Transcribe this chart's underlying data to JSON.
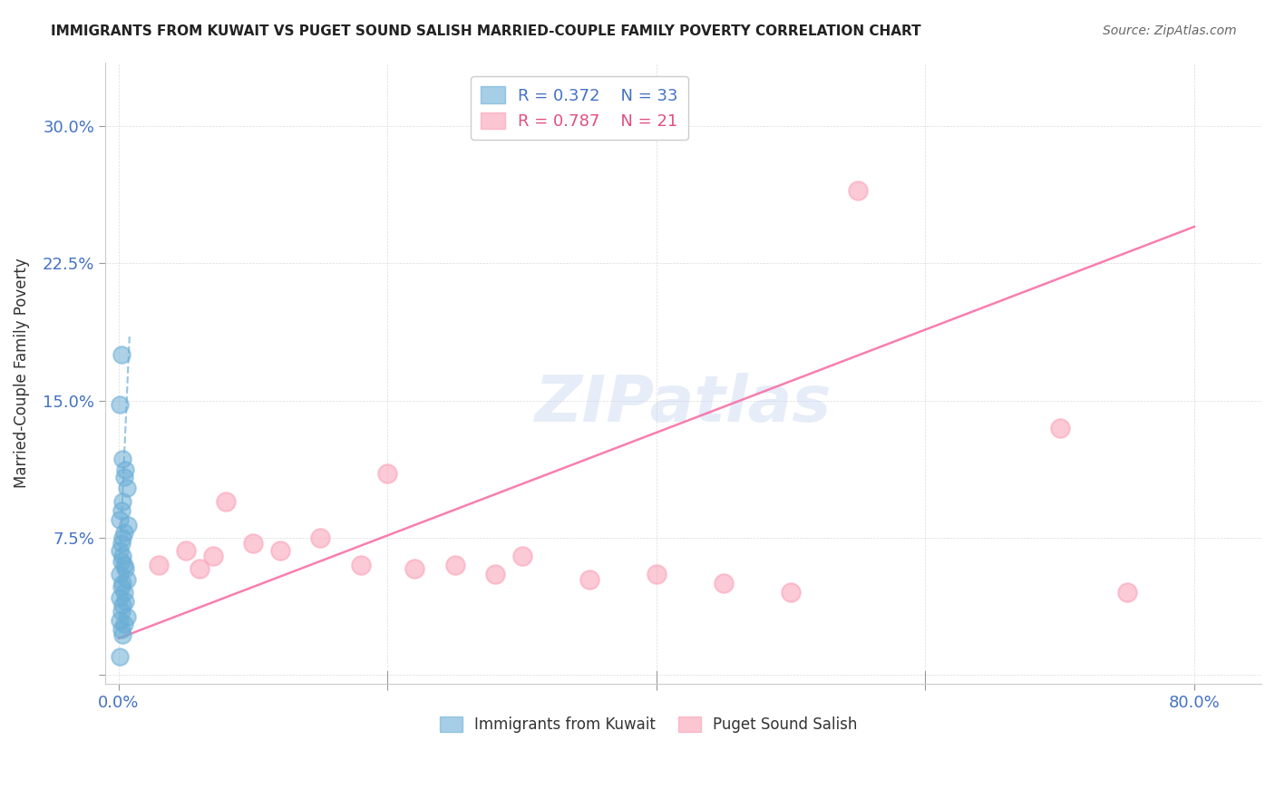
{
  "title": "IMMIGRANTS FROM KUWAIT VS PUGET SOUND SALISH MARRIED-COUPLE FAMILY POVERTY CORRELATION CHART",
  "source": "Source: ZipAtlas.com",
  "xlabel_blue": "Immigrants from Kuwait",
  "xlabel_pink": "Puget Sound Salish",
  "ylabel": "Married-Couple Family Poverty",
  "x_ticks": [
    0.0,
    0.2,
    0.4,
    0.6,
    0.8
  ],
  "x_tick_labels": [
    "0.0%",
    "",
    "",
    "",
    "80.0%"
  ],
  "y_ticks": [
    0.0,
    0.075,
    0.15,
    0.225,
    0.3
  ],
  "y_tick_labels": [
    "",
    "7.5%",
    "15.0%",
    "22.5%",
    "30.0%"
  ],
  "xlim": [
    -0.01,
    0.85
  ],
  "ylim": [
    -0.005,
    0.335
  ],
  "blue_R": "0.372",
  "blue_N": "33",
  "pink_R": "0.787",
  "pink_N": "21",
  "blue_color": "#6baed6",
  "pink_color": "#fa9fb5",
  "blue_line_color": "#6baed6",
  "pink_line_color": "#f768a1",
  "watermark": "ZIPatlas",
  "blue_scatter_x": [
    0.002,
    0.001,
    0.003,
    0.005,
    0.004,
    0.006,
    0.003,
    0.002,
    0.001,
    0.007,
    0.004,
    0.003,
    0.002,
    0.001,
    0.003,
    0.002,
    0.004,
    0.005,
    0.001,
    0.006,
    0.003,
    0.002,
    0.004,
    0.001,
    0.005,
    0.003,
    0.002,
    0.006,
    0.001,
    0.004,
    0.002,
    0.003,
    0.001
  ],
  "blue_scatter_y": [
    0.175,
    0.148,
    0.118,
    0.112,
    0.108,
    0.102,
    0.095,
    0.09,
    0.085,
    0.082,
    0.078,
    0.075,
    0.072,
    0.068,
    0.065,
    0.062,
    0.06,
    0.058,
    0.055,
    0.052,
    0.05,
    0.048,
    0.045,
    0.042,
    0.04,
    0.038,
    0.035,
    0.032,
    0.03,
    0.028,
    0.025,
    0.022,
    0.01
  ],
  "pink_scatter_x": [
    0.55,
    0.7,
    0.2,
    0.3,
    0.08,
    0.15,
    0.25,
    0.4,
    0.45,
    0.5,
    0.1,
    0.12,
    0.18,
    0.22,
    0.28,
    0.35,
    0.05,
    0.07,
    0.03,
    0.06,
    0.75
  ],
  "pink_scatter_y": [
    0.265,
    0.135,
    0.11,
    0.065,
    0.095,
    0.075,
    0.06,
    0.055,
    0.05,
    0.045,
    0.072,
    0.068,
    0.06,
    0.058,
    0.055,
    0.052,
    0.068,
    0.065,
    0.06,
    0.058,
    0.045
  ],
  "blue_trend_x": [
    0.0,
    0.008
  ],
  "blue_trend_y": [
    0.05,
    0.185
  ],
  "pink_trend_x": [
    0.0,
    0.8
  ],
  "pink_trend_y": [
    0.02,
    0.245
  ]
}
